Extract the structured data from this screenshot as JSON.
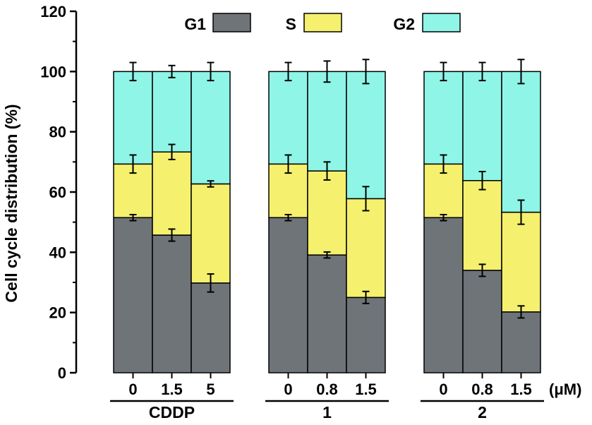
{
  "chart_data": {
    "type": "bar",
    "stacked": true,
    "ylabel": "Cell cycle distribution (%)",
    "ylim": [
      0,
      120
    ],
    "yticks": [
      "0",
      "20",
      "40",
      "60",
      "80",
      "100",
      "120"
    ],
    "unit": "(μM)",
    "grid": false,
    "legend_position": "top",
    "groups": [
      {
        "label": "CDDP",
        "bars": [
          {
            "concentration": "0",
            "values": [
              51.5,
              17.8,
              30.7
            ],
            "errors": [
              1.0,
              3.0,
              3.0
            ]
          },
          {
            "concentration": "1.5",
            "values": [
              45.7,
              27.6,
              26.7
            ],
            "errors": [
              2.0,
              2.5,
              2.0
            ]
          },
          {
            "concentration": "5",
            "values": [
              29.8,
              32.9,
              37.3
            ],
            "errors": [
              3.0,
              1.0,
              3.0
            ]
          }
        ]
      },
      {
        "label": "1",
        "bars": [
          {
            "concentration": "0",
            "values": [
              51.5,
              17.8,
              30.7
            ],
            "errors": [
              1.0,
              3.0,
              3.0
            ]
          },
          {
            "concentration": "0.8",
            "values": [
              39.1,
              27.9,
              33.0
            ],
            "errors": [
              1.0,
              3.0,
              3.5
            ]
          },
          {
            "concentration": "1.5",
            "values": [
              25.0,
              32.8,
              42.2
            ],
            "errors": [
              2.0,
              4.0,
              4.0
            ]
          }
        ]
      },
      {
        "label": "2",
        "bars": [
          {
            "concentration": "0",
            "values": [
              51.5,
              17.8,
              30.7
            ],
            "errors": [
              1.0,
              3.0,
              3.0
            ]
          },
          {
            "concentration": "0.8",
            "values": [
              34.0,
              29.8,
              36.2
            ],
            "errors": [
              2.0,
              3.0,
              3.0
            ]
          },
          {
            "concentration": "1.5",
            "values": [
              20.2,
              33.1,
              46.7
            ],
            "errors": [
              2.0,
              4.0,
              4.0
            ]
          }
        ]
      }
    ],
    "series": [
      {
        "name": "G1",
        "color": "#6f7479"
      },
      {
        "name": "S",
        "color": "#f5f06e"
      },
      {
        "name": "G2",
        "color": "#8ff5e7"
      }
    ]
  }
}
